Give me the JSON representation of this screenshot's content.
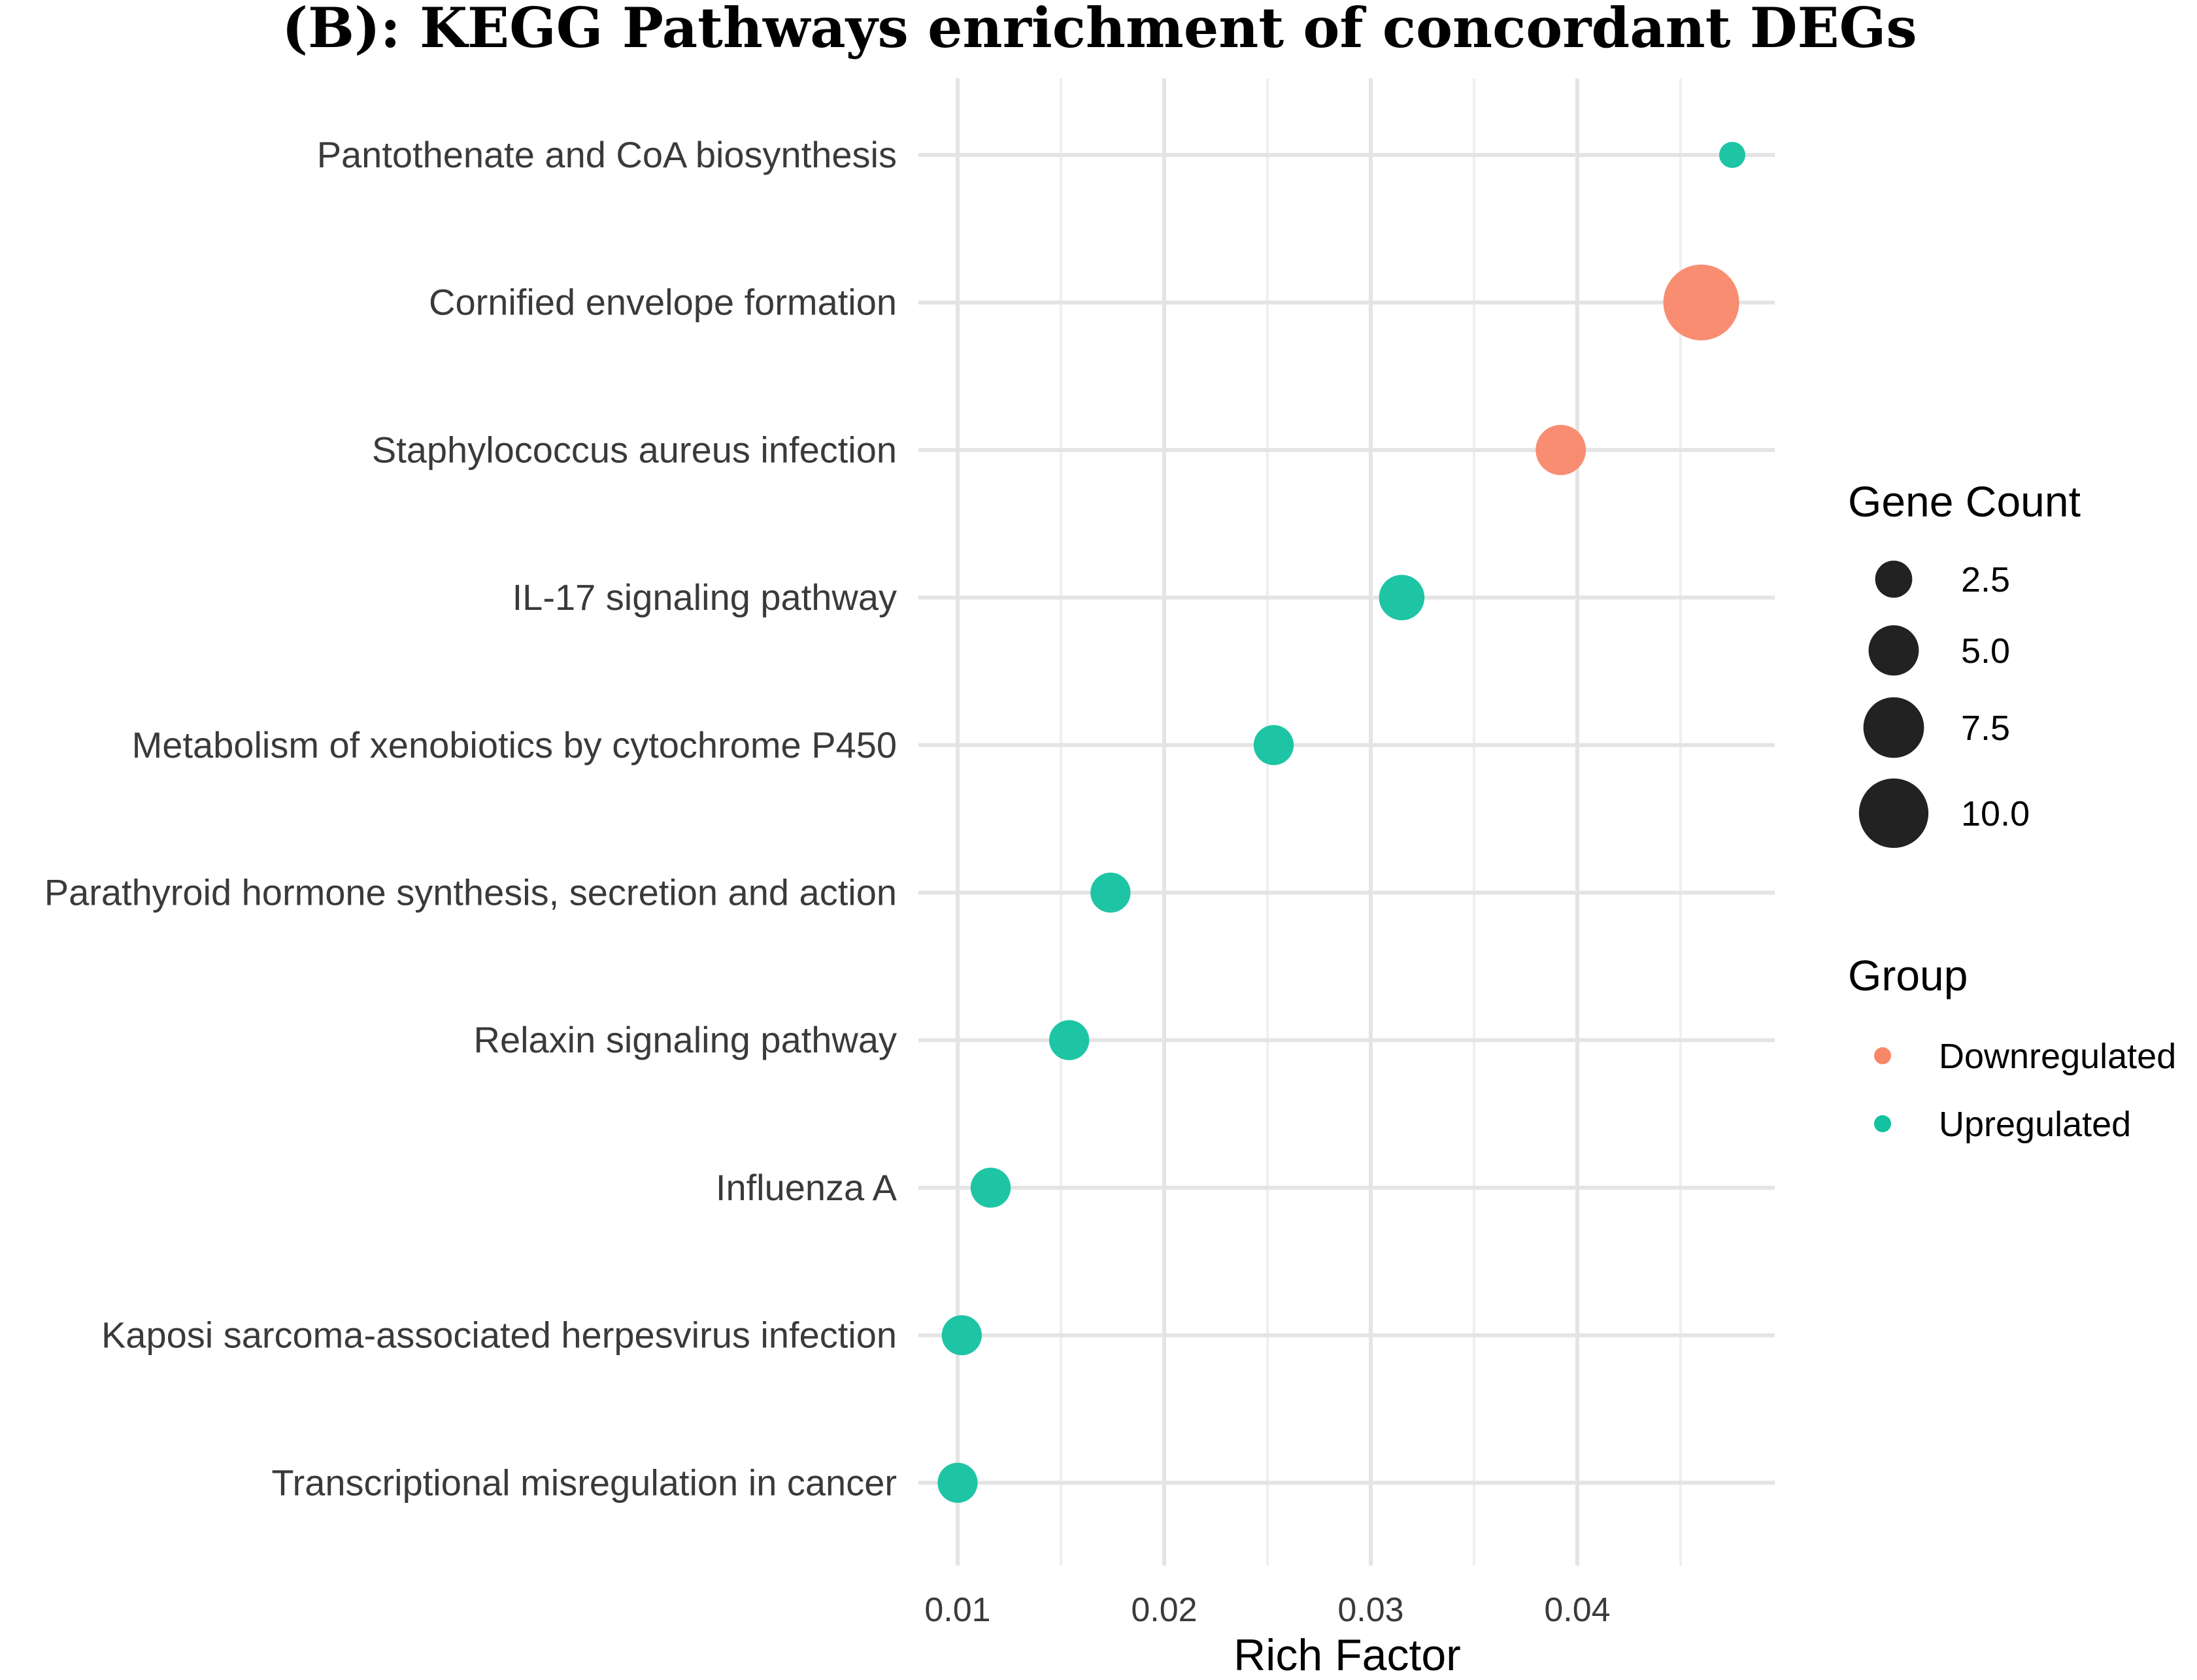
{
  "chart_data": {
    "type": "scatter",
    "title": "(B): KEGG Pathways enrichment of concordant DEGs",
    "xlabel": "Rich Factor",
    "ylabel": "",
    "xlim": [
      0.0088,
      0.049
    ],
    "x_ticks": [
      0.01,
      0.02,
      0.03,
      0.04
    ],
    "x_tick_labels": [
      "0.01",
      "0.02",
      "0.03",
      "0.04"
    ],
    "x_minor_ticks": [
      0.015,
      0.025,
      0.035,
      0.045
    ],
    "grid": true,
    "categories": [
      "Pantothenate and CoA biosynthesis",
      "Cornified envelope formation",
      "Staphylococcus aureus infection",
      "IL-17 signaling pathway",
      "Metabolism of xenobiotics by cytochrome P450",
      "Parathyroid hormone synthesis, secretion and action",
      "Relaxin signaling pathway",
      "Influenza A",
      "Kaposi sarcoma-associated herpesvirus infection",
      "Transcriptional misregulation in cancer"
    ],
    "points": [
      {
        "pathway": "Pantothenate and CoA biosynthesis",
        "rich_factor": 0.0475,
        "gene_count": 1,
        "group": "Upregulated"
      },
      {
        "pathway": "Cornified envelope formation",
        "rich_factor": 0.046,
        "gene_count": 12,
        "group": "Downregulated"
      },
      {
        "pathway": "Staphylococcus aureus infection",
        "rich_factor": 0.0392,
        "gene_count": 5,
        "group": "Downregulated"
      },
      {
        "pathway": "IL-17 signaling pathway",
        "rich_factor": 0.0315,
        "gene_count": 4,
        "group": "Upregulated"
      },
      {
        "pathway": "Metabolism of xenobiotics by cytochrome P450",
        "rich_factor": 0.0253,
        "gene_count": 3,
        "group": "Upregulated"
      },
      {
        "pathway": "Parathyroid hormone synthesis, secretion and action",
        "rich_factor": 0.0174,
        "gene_count": 3,
        "group": "Upregulated"
      },
      {
        "pathway": "Relaxin signaling pathway",
        "rich_factor": 0.0154,
        "gene_count": 3,
        "group": "Upregulated"
      },
      {
        "pathway": "Influenza A",
        "rich_factor": 0.0116,
        "gene_count": 3,
        "group": "Upregulated"
      },
      {
        "pathway": "Kaposi sarcoma-associated herpesvirus infection",
        "rich_factor": 0.0102,
        "gene_count": 3,
        "group": "Upregulated"
      },
      {
        "pathway": "Transcriptional misregulation in cancer",
        "rich_factor": 0.01,
        "gene_count": 3,
        "group": "Upregulated"
      }
    ],
    "size_legend": {
      "title": "Gene Count",
      "values": [
        2.5,
        5.0,
        7.5,
        10.0
      ],
      "labels": [
        "2.5",
        "5.0",
        "7.5",
        "10.0"
      ],
      "size_range": [
        1,
        12
      ]
    },
    "color_legend": {
      "title": "Group",
      "entries": [
        {
          "label": "Downregulated",
          "color": "#f8876a"
        },
        {
          "label": "Upregulated",
          "color": "#12c2a0"
        }
      ]
    },
    "legend_position": "right"
  }
}
